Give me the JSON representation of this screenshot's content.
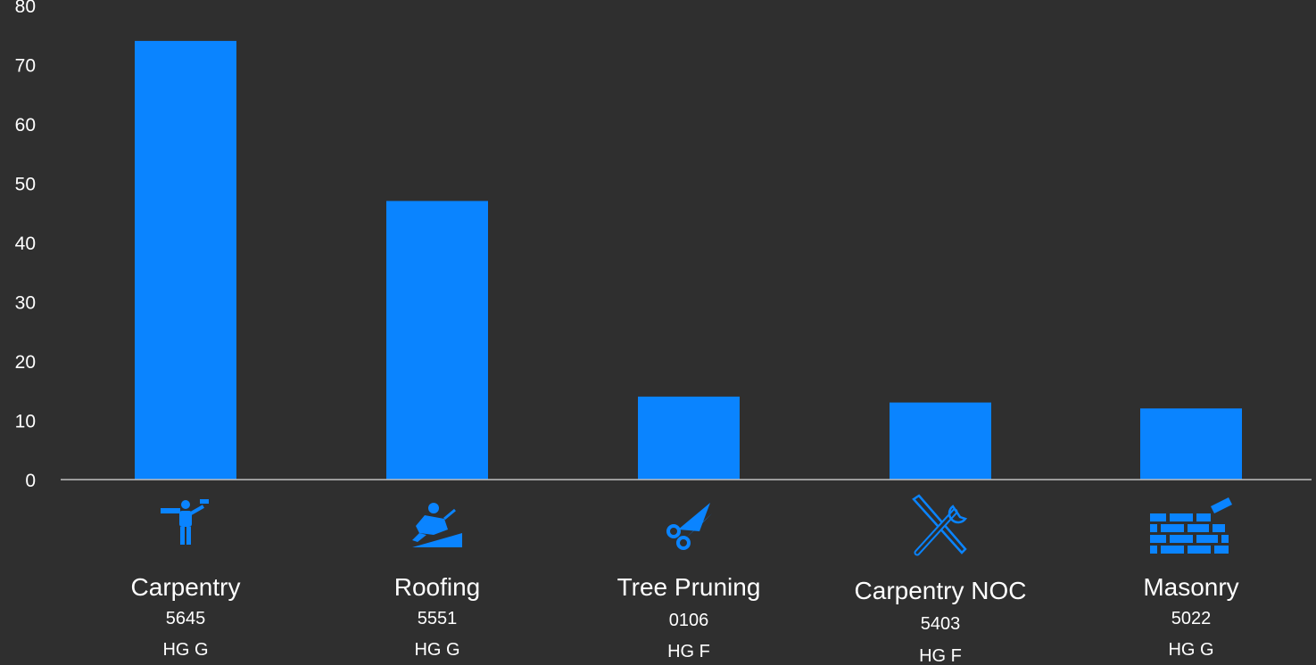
{
  "chart_data": {
    "type": "bar",
    "title": "",
    "xlabel": "",
    "ylabel": "",
    "ylim": [
      0,
      80
    ],
    "yticks": [
      0,
      10,
      20,
      30,
      40,
      50,
      60,
      70,
      80
    ],
    "grid": false,
    "bar_color": "#0a84ff",
    "categories": [
      {
        "name": "Carpentry",
        "code": "5645",
        "group": "HG G",
        "icon": "carpenter-icon"
      },
      {
        "name": "Roofing",
        "code": "5551",
        "group": "HG G",
        "icon": "roofer-icon"
      },
      {
        "name": "Tree Pruning",
        "code": "0106",
        "group": "HG F",
        "icon": "scissors-icon"
      },
      {
        "name": "Carpentry NOC",
        "code": "5403",
        "group": "HG F",
        "icon": "tools-icon"
      },
      {
        "name": "Masonry",
        "code": "5022",
        "group": "HG G",
        "icon": "brick-wall-icon"
      }
    ],
    "values": [
      74,
      47,
      14,
      13,
      12
    ]
  }
}
